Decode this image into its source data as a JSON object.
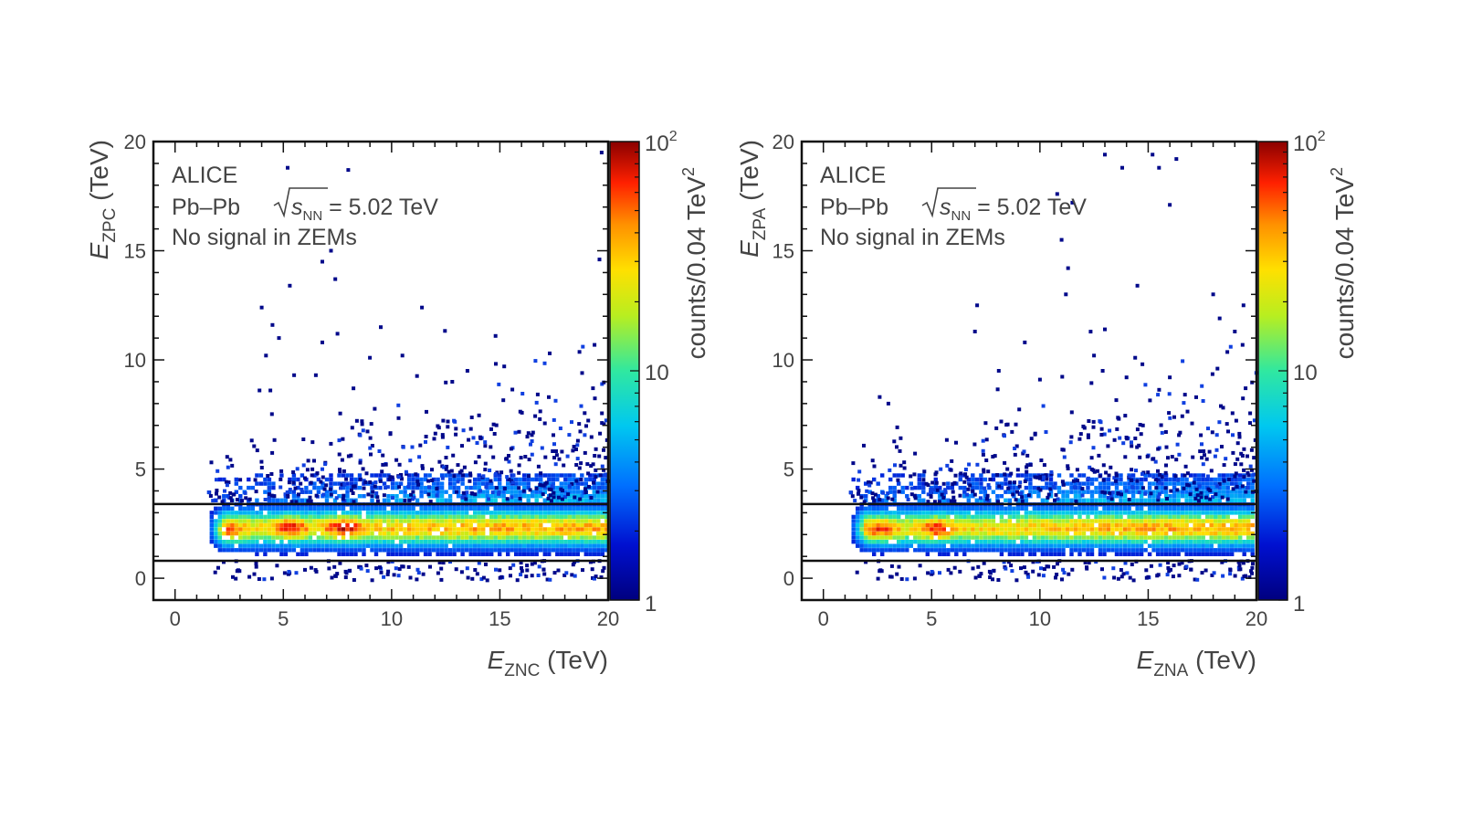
{
  "chart_data": [
    {
      "type": "heatmap",
      "experiment_label": "ALICE",
      "system_label": "Pb–Pb",
      "energy_label": "= 5.02 TeV",
      "energy_symbol": "s",
      "energy_subscript": "NN",
      "condition_label": "No signal in ZEMs",
      "xlabel_symbol": "E",
      "xlabel_subscript": "ZNC",
      "xlabel_unit": "(TeV)",
      "ylabel_symbol": "E",
      "ylabel_subscript": "ZPC",
      "ylabel_unit": "(TeV)",
      "xlim": [
        -1,
        20
      ],
      "ylim": [
        -1,
        20
      ],
      "xticks": [
        "0",
        "5",
        "10",
        "15",
        "20"
      ],
      "yticks": [
        "0",
        "5",
        "10",
        "15",
        "20"
      ],
      "colorbar": {
        "label": "counts/0.04 TeV",
        "label_exponent": "2",
        "scale": "log",
        "range": [
          1,
          100
        ],
        "tick_labels": [
          "1",
          "10",
          "10"
        ],
        "top_tick_exponent": "2"
      },
      "cut_lines_y": [
        0.8,
        3.4
      ],
      "band": {
        "y_center": 2.3,
        "y_sigma": 0.55,
        "x_start": 1.5,
        "x_end": 20
      },
      "hotspots": [
        {
          "x": 2.5,
          "y": 2.0
        },
        {
          "x": 5.3,
          "y": 2.3
        },
        {
          "x": 7.8,
          "y": 2.3
        }
      ],
      "sparse_points": [
        [
          4.0,
          12.4
        ],
        [
          4.5,
          11.6
        ],
        [
          4.8,
          11.0
        ],
        [
          5.3,
          13.4
        ],
        [
          6.8,
          14.5
        ],
        [
          7.2,
          15.0
        ],
        [
          7.4,
          13.7
        ],
        [
          8.0,
          18.7
        ],
        [
          5.2,
          18.8
        ],
        [
          9.5,
          11.5
        ],
        [
          11.4,
          12.4
        ],
        [
          14.8,
          11.1
        ],
        [
          17.3,
          10.3
        ],
        [
          19.7,
          19.5
        ],
        [
          19.6,
          14.6
        ],
        [
          6.8,
          10.8
        ],
        [
          7.5,
          11.2
        ],
        [
          10.5,
          10.2
        ],
        [
          4.2,
          10.2
        ],
        [
          3.9,
          8.6
        ],
        [
          4.4,
          8.6
        ],
        [
          5.5,
          9.3
        ],
        [
          6.5,
          9.3
        ],
        [
          9.0,
          10.1
        ],
        [
          12.8,
          9.0
        ],
        [
          13.5,
          9.5
        ],
        [
          15.2,
          9.7
        ],
        [
          18.8,
          9.4
        ],
        [
          19.3,
          8.7
        ]
      ]
    },
    {
      "type": "heatmap",
      "experiment_label": "ALICE",
      "system_label": "Pb–Pb",
      "energy_label": "= 5.02 TeV",
      "energy_symbol": "s",
      "energy_subscript": "NN",
      "condition_label": "No signal in ZEMs",
      "xlabel_symbol": "E",
      "xlabel_subscript": "ZNA",
      "xlabel_unit": "(TeV)",
      "ylabel_symbol": "E",
      "ylabel_subscript": "ZPA",
      "ylabel_unit": "(TeV)",
      "xlim": [
        -1,
        20
      ],
      "ylim": [
        -1,
        20
      ],
      "xticks": [
        "0",
        "5",
        "10",
        "15",
        "20"
      ],
      "yticks": [
        "0",
        "5",
        "10",
        "15",
        "20"
      ],
      "colorbar": {
        "label": "counts/0.04 TeV",
        "label_exponent": "2",
        "scale": "log",
        "range": [
          1,
          100
        ],
        "tick_labels": [
          "1",
          "10",
          "10"
        ],
        "top_tick_exponent": "2"
      },
      "cut_lines_y": [
        0.8,
        3.4
      ],
      "band": {
        "y_center": 2.3,
        "y_sigma": 0.55,
        "x_start": 1.2,
        "x_end": 20
      },
      "hotspots": [
        {
          "x": 2.6,
          "y": 2.1
        },
        {
          "x": 5.2,
          "y": 2.2
        }
      ],
      "sparse_points": [
        [
          13.0,
          19.4
        ],
        [
          13.8,
          18.8
        ],
        [
          15.2,
          19.4
        ],
        [
          15.5,
          18.8
        ],
        [
          16.3,
          19.2
        ],
        [
          10.8,
          17.6
        ],
        [
          11.5,
          17.2
        ],
        [
          16.0,
          17.1
        ],
        [
          11.0,
          15.5
        ],
        [
          11.3,
          14.2
        ],
        [
          11.2,
          13.0
        ],
        [
          14.5,
          13.4
        ],
        [
          18.0,
          13.0
        ],
        [
          19.4,
          12.5
        ],
        [
          7.1,
          12.5
        ],
        [
          13.0,
          11.4
        ],
        [
          7.0,
          11.3
        ],
        [
          9.3,
          10.8
        ],
        [
          12.5,
          10.2
        ],
        [
          14.4,
          10.1
        ],
        [
          18.3,
          11.9
        ],
        [
          19.0,
          11.3
        ],
        [
          8.1,
          9.5
        ],
        [
          10.0,
          9.1
        ],
        [
          12.9,
          9.5
        ],
        [
          14.0,
          9.2
        ],
        [
          16.0,
          9.2
        ],
        [
          18.2,
          9.6
        ],
        [
          19.5,
          8.7
        ],
        [
          2.6,
          8.3
        ],
        [
          3.0,
          8.0
        ]
      ]
    }
  ]
}
